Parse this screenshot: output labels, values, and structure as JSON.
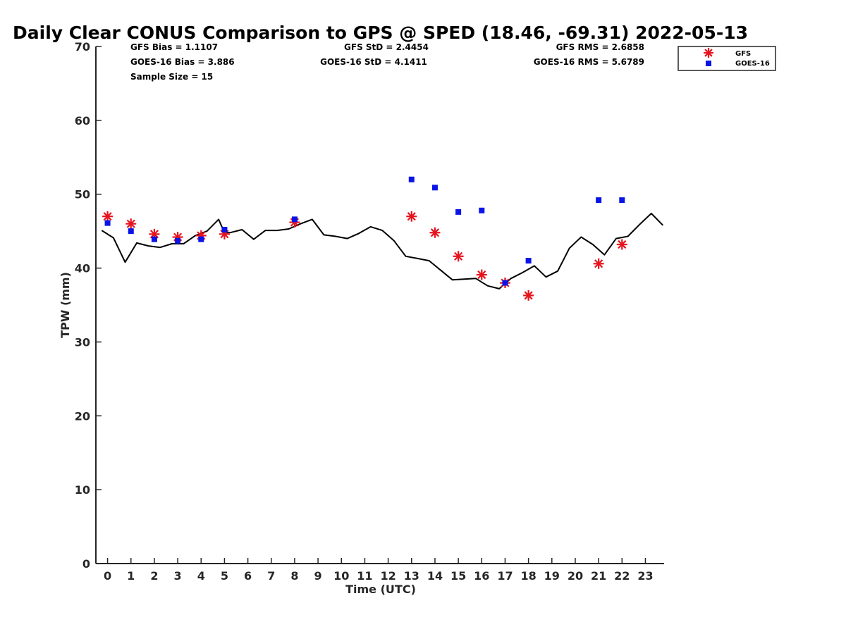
{
  "chart_data": {
    "type": "scatter",
    "title": "Daily Clear CONUS Comparison to GPS @ SPED (18.46, -69.31) 2022-05-13",
    "xlabel": "Time (UTC)",
    "ylabel": "TPW (mm)",
    "xlim": [
      -0.5,
      23.8
    ],
    "ylim": [
      0,
      70
    ],
    "x_ticks": [
      "0",
      "1",
      "2",
      "3",
      "4",
      "5",
      "6",
      "7",
      "8",
      "9",
      "10",
      "11",
      "12",
      "13",
      "14",
      "15",
      "16",
      "17",
      "18",
      "19",
      "20",
      "21",
      "22",
      "23"
    ],
    "y_ticks": [
      "0",
      "10",
      "20",
      "30",
      "40",
      "50",
      "60",
      "70"
    ],
    "grid": false,
    "legend_position": "top-right",
    "stats": {
      "gfs_bias": "GFS Bias = 1.1107",
      "goes_bias": "GOES-16 Bias = 3.886",
      "sample_size": "Sample Size = 15",
      "gfs_std": "GFS StD = 2.4454",
      "goes_std": "GOES-16 StD = 4.1411",
      "gfs_rms": "GFS RMS = 2.6858",
      "goes_rms": "GOES-16 RMS = 5.6789"
    },
    "series": [
      {
        "name": "GFS",
        "marker": "asterisk",
        "color": "#e6141e",
        "points": [
          [
            0,
            47.0
          ],
          [
            1,
            46.0
          ],
          [
            2,
            44.6
          ],
          [
            3,
            44.2
          ],
          [
            4,
            44.4
          ],
          [
            5,
            44.6
          ],
          [
            8,
            46.2
          ],
          [
            13,
            47.0
          ],
          [
            14,
            44.8
          ],
          [
            15,
            41.6
          ],
          [
            16,
            39.1
          ],
          [
            17,
            38.0
          ],
          [
            18,
            36.3
          ],
          [
            21,
            40.6
          ],
          [
            22,
            43.2
          ]
        ]
      },
      {
        "name": "GOES-16",
        "marker": "square",
        "color": "#0a14e6",
        "points": [
          [
            0,
            46.1
          ],
          [
            1,
            45.0
          ],
          [
            2,
            43.9
          ],
          [
            3,
            43.7
          ],
          [
            4,
            43.9
          ],
          [
            5,
            45.2
          ],
          [
            8,
            46.6
          ],
          [
            13,
            52.0
          ],
          [
            14,
            50.9
          ],
          [
            15,
            47.6
          ],
          [
            16,
            47.8
          ],
          [
            17,
            38.0
          ],
          [
            18,
            41.0
          ],
          [
            21,
            49.2
          ],
          [
            22,
            49.2
          ]
        ]
      },
      {
        "name": "GPS",
        "marker": "line",
        "color": "#000000",
        "points": [
          [
            -0.25,
            45.1
          ],
          [
            0.25,
            44.1
          ],
          [
            0.75,
            40.8
          ],
          [
            1.25,
            43.4
          ],
          [
            1.75,
            43.0
          ],
          [
            2.25,
            42.8
          ],
          [
            2.75,
            43.3
          ],
          [
            3.25,
            43.3
          ],
          [
            3.75,
            44.4
          ],
          [
            4.25,
            45.0
          ],
          [
            4.75,
            46.6
          ],
          [
            5.0,
            44.8
          ],
          [
            5.25,
            44.8
          ],
          [
            5.75,
            45.2
          ],
          [
            6.25,
            43.9
          ],
          [
            6.75,
            45.1
          ],
          [
            7.25,
            45.1
          ],
          [
            7.75,
            45.3
          ],
          [
            8.25,
            46.0
          ],
          [
            8.75,
            46.6
          ],
          [
            9.25,
            44.5
          ],
          [
            9.75,
            44.3
          ],
          [
            10.25,
            44.0
          ],
          [
            10.75,
            44.7
          ],
          [
            11.25,
            45.6
          ],
          [
            11.75,
            45.1
          ],
          [
            12.25,
            43.7
          ],
          [
            12.75,
            41.6
          ],
          [
            13.25,
            41.3
          ],
          [
            13.75,
            41.0
          ],
          [
            14.25,
            39.7
          ],
          [
            14.75,
            38.4
          ],
          [
            15.25,
            38.5
          ],
          [
            15.75,
            38.6
          ],
          [
            16.25,
            37.6
          ],
          [
            16.75,
            37.2
          ],
          [
            17.25,
            38.6
          ],
          [
            17.75,
            39.4
          ],
          [
            18.25,
            40.3
          ],
          [
            18.75,
            38.8
          ],
          [
            19.25,
            39.6
          ],
          [
            19.75,
            42.7
          ],
          [
            20.25,
            44.2
          ],
          [
            20.75,
            43.2
          ],
          [
            21.25,
            41.8
          ],
          [
            21.75,
            44.0
          ],
          [
            22.25,
            44.3
          ],
          [
            22.75,
            45.9
          ],
          [
            23.25,
            47.4
          ],
          [
            23.75,
            45.8
          ]
        ]
      }
    ]
  }
}
